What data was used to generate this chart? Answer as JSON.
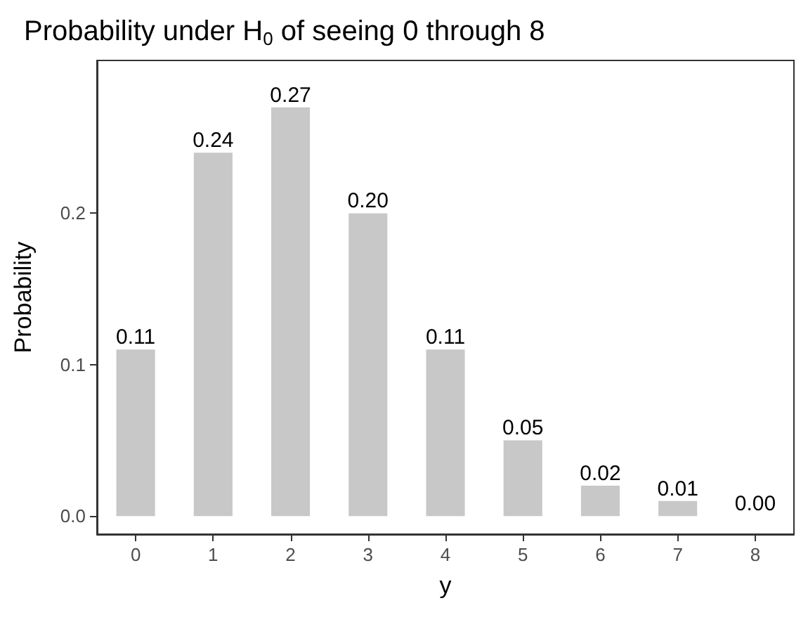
{
  "chart_data": {
    "type": "bar",
    "title": "Probability under H$_{0}$ of seeing 0 through 8",
    "xlabel": "y",
    "ylabel": "Probability",
    "categories": [
      "0",
      "1",
      "2",
      "3",
      "4",
      "5",
      "6",
      "7",
      "8"
    ],
    "values": [
      0.11,
      0.24,
      0.27,
      0.2,
      0.11,
      0.05,
      0.02,
      0.01,
      0.0
    ],
    "value_labels": [
      "0.11",
      "0.24",
      "0.27",
      "0.20",
      "0.11",
      "0.05",
      "0.02",
      "0.01",
      "0.00"
    ],
    "color": "#c8c8c8",
    "ylim": [
      -0.012,
      0.301
    ],
    "yticks": [
      {
        "value": 0,
        "label": "0.0"
      },
      {
        "value": 0.1,
        "label": "0.1"
      },
      {
        "value": 0.2,
        "label": "0.2"
      }
    ],
    "grid": false
  }
}
